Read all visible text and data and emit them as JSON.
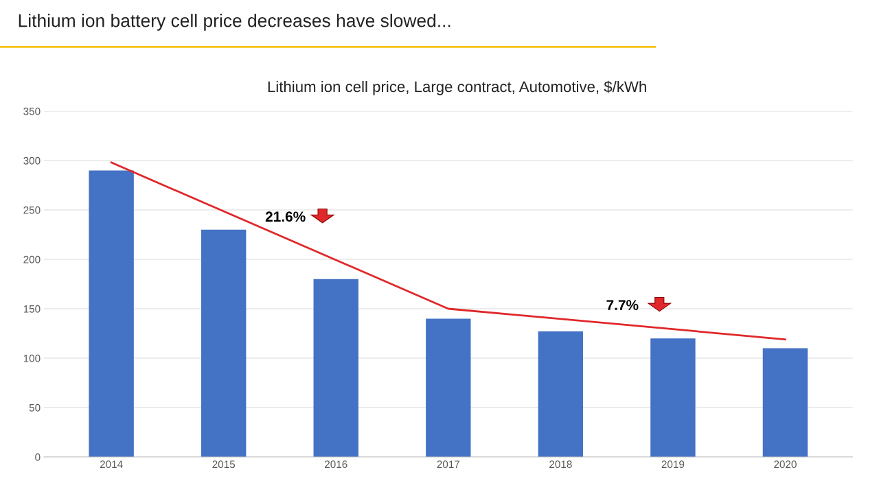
{
  "chart_data": {
    "type": "bar",
    "title": "Lithium ion battery cell price decreases have slowed...",
    "subtitle": "Lithium ion cell price, Large contract, Automotive, $/kWh",
    "categories": [
      "2014",
      "2015",
      "2016",
      "2017",
      "2018",
      "2019",
      "2020"
    ],
    "series": [
      {
        "color": "#4472c4",
        "values": [
          290,
          230,
          180,
          140,
          127,
          120,
          110
        ]
      },
      {
        "type": "line",
        "color": "#e0282a",
        "values": [
          298,
          null,
          null,
          150,
          null,
          null,
          119
        ]
      }
    ],
    "annotations": [
      "21.6%",
      "7.7%"
    ],
    "ylim": [
      0,
      350
    ],
    "yticks": [
      0,
      50,
      100,
      150,
      200,
      250,
      300,
      350
    ],
    "grid": "y",
    "legend": false
  }
}
